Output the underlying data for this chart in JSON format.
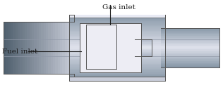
{
  "gas_inlet_label": "Gas inlet",
  "fuel_inlet_label": "Fuel inlet",
  "bg_color": "#ffffff",
  "edge_color": "#555555",
  "label_color": "#1a1a1a",
  "font_size": 7.5,
  "pipe_dark": "#606878",
  "pipe_light": "#d8dce8",
  "pipe_mid": "#b0b8c8",
  "body_light": "#e8eaf2",
  "body_mid": "#c8ccd8",
  "insert_dark": "#b0a8c0",
  "insert_light": "#e0dcea",
  "cavity_bg": "#f2f2f8",
  "ledge_color": "#d0d4e0"
}
